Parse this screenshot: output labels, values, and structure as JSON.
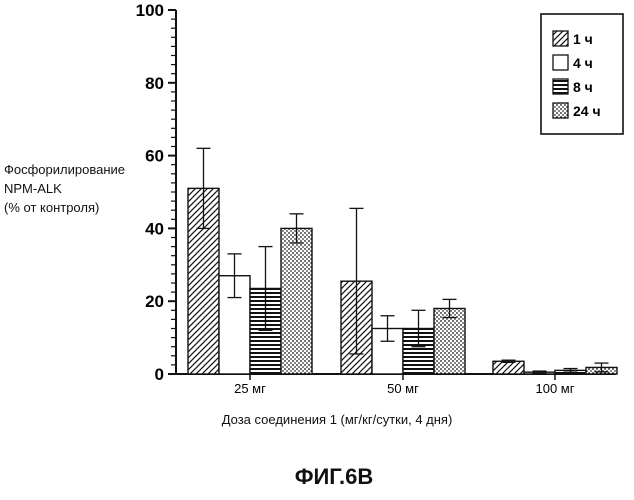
{
  "chart_data": {
    "type": "bar",
    "title": "",
    "ylabel": "Фосфорилирование\nNPM-ALK\n(% от контроля)",
    "xlabel": "Доза соединения 1 (мг/кг/сутки, 4 дня)",
    "ylim": [
      0,
      100
    ],
    "yticks": [
      0,
      20,
      40,
      60,
      80,
      100
    ],
    "categories": [
      "25 мг",
      "50 мг",
      "100 мг"
    ],
    "legend_position": "top-right",
    "grid": false,
    "series": [
      {
        "name": "1 ч",
        "pattern": "diagonal",
        "values": [
          51,
          25.5,
          3.5
        ],
        "error": [
          11,
          20,
          0.3
        ]
      },
      {
        "name": "4 ч",
        "pattern": "white",
        "values": [
          27,
          12.5,
          0.5
        ],
        "error": [
          6,
          3.5,
          0.3
        ]
      },
      {
        "name": "8 ч",
        "pattern": "horizontal",
        "values": [
          23.5,
          12.5,
          1
        ],
        "error": [
          11.5,
          5,
          0.5
        ]
      },
      {
        "name": "24 ч",
        "pattern": "dotted",
        "values": [
          40,
          18,
          1.8
        ],
        "error": [
          4,
          2.5,
          1.2
        ]
      }
    ]
  },
  "caption": "ФИГ.6B"
}
